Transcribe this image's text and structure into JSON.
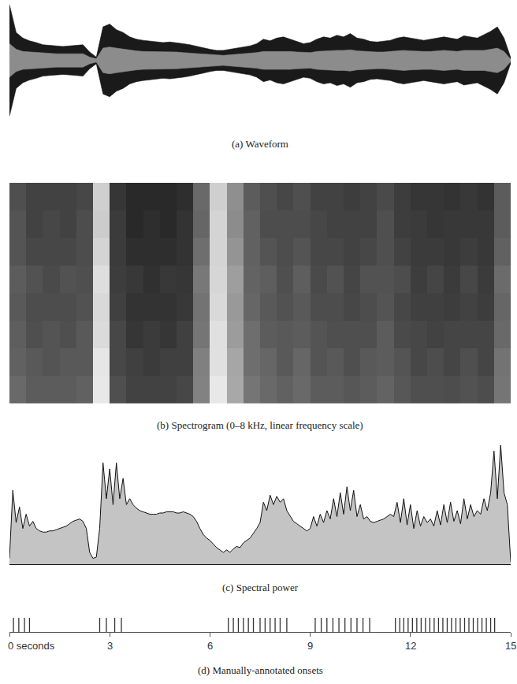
{
  "chart_data": [
    {
      "type": "waveform",
      "title": "(a) Waveform",
      "x": [
        0,
        0.2,
        0.4,
        0.6,
        0.8,
        1.0,
        1.2,
        1.4,
        1.6,
        1.8,
        2.0,
        2.2,
        2.4,
        2.6,
        2.8,
        3.0,
        3.2,
        3.4,
        3.6,
        3.8,
        4.0,
        4.2,
        4.4,
        4.6,
        4.8,
        5.0,
        5.2,
        5.4,
        5.6,
        5.8,
        6.0,
        6.2,
        6.4,
        6.6,
        6.8,
        7.0,
        7.2,
        7.4,
        7.6,
        7.8,
        8.0,
        8.2,
        8.4,
        8.6,
        8.8,
        9.0,
        9.2,
        9.4,
        9.6,
        9.8,
        10.0,
        10.2,
        10.4,
        10.6,
        10.8,
        11.0,
        11.2,
        11.4,
        11.6,
        11.8,
        12.0,
        12.2,
        12.4,
        12.6,
        12.8,
        13.0,
        13.2,
        13.4,
        13.6,
        13.8,
        14.0,
        14.2,
        14.4,
        14.6,
        14.8,
        15.0
      ],
      "series": [
        {
          "color": "#1a1a1a",
          "values": [
            1.0,
            0.5,
            0.4,
            0.35,
            0.32,
            0.28,
            0.27,
            0.26,
            0.25,
            0.26,
            0.27,
            0.28,
            0.15,
            0.06,
            0.6,
            0.65,
            0.55,
            0.5,
            0.42,
            0.38,
            0.36,
            0.35,
            0.33,
            0.32,
            0.33,
            0.32,
            0.3,
            0.28,
            0.25,
            0.22,
            0.2,
            0.18,
            0.18,
            0.2,
            0.22,
            0.24,
            0.26,
            0.3,
            0.38,
            0.35,
            0.4,
            0.42,
            0.38,
            0.34,
            0.3,
            0.32,
            0.38,
            0.42,
            0.4,
            0.45,
            0.42,
            0.48,
            0.4,
            0.38,
            0.34,
            0.33,
            0.34,
            0.36,
            0.4,
            0.42,
            0.4,
            0.38,
            0.36,
            0.38,
            0.4,
            0.42,
            0.4,
            0.38,
            0.44,
            0.42,
            0.4,
            0.46,
            0.52,
            0.6,
            0.4,
            0.05
          ]
        },
        {
          "color": "#8c8c8c",
          "values": [
            0.3,
            0.2,
            0.16,
            0.15,
            0.14,
            0.13,
            0.12,
            0.12,
            0.12,
            0.12,
            0.12,
            0.12,
            0.06,
            0.03,
            0.22,
            0.24,
            0.22,
            0.2,
            0.18,
            0.17,
            0.16,
            0.16,
            0.15,
            0.15,
            0.15,
            0.15,
            0.14,
            0.13,
            0.12,
            0.11,
            0.1,
            0.09,
            0.09,
            0.1,
            0.11,
            0.12,
            0.12,
            0.14,
            0.16,
            0.16,
            0.17,
            0.17,
            0.16,
            0.15,
            0.14,
            0.14,
            0.16,
            0.17,
            0.17,
            0.18,
            0.18,
            0.19,
            0.17,
            0.16,
            0.15,
            0.15,
            0.15,
            0.16,
            0.17,
            0.18,
            0.17,
            0.16,
            0.16,
            0.16,
            0.17,
            0.18,
            0.17,
            0.16,
            0.18,
            0.18,
            0.17,
            0.18,
            0.2,
            0.22,
            0.16,
            0.02
          ]
        }
      ],
      "xlim": [
        0,
        15
      ],
      "ylim": [
        -1,
        1
      ],
      "tick_labels": false
    },
    {
      "type": "heatmap",
      "title": "(b) Spectrogram (0–8 kHz, linear frequency scale)",
      "x": [
        0,
        0.5,
        1.0,
        1.5,
        2.0,
        2.5,
        3.0,
        3.5,
        4.0,
        4.5,
        5.0,
        5.5,
        6.0,
        6.5,
        7.0,
        7.5,
        8.0,
        8.5,
        9.0,
        9.5,
        10.0,
        10.5,
        11.0,
        11.5,
        12.0,
        12.5,
        13.0,
        13.5,
        14.0,
        14.5,
        15.0
      ],
      "y": [
        0,
        1,
        2,
        3,
        4,
        5,
        6,
        7,
        8
      ],
      "values": [
        [
          0.41,
          0.36,
          0.36,
          0.36,
          0.38,
          0.91,
          0.31,
          0.26,
          0.26,
          0.26,
          0.28,
          0.51,
          0.91,
          0.66,
          0.46,
          0.41,
          0.38,
          0.41,
          0.36,
          0.36,
          0.34,
          0.36,
          0.39,
          0.34,
          0.31,
          0.31,
          0.3,
          0.32,
          0.3,
          0.46
        ],
        [
          0.38,
          0.35,
          0.33,
          0.35,
          0.35,
          0.9,
          0.28,
          0.25,
          0.23,
          0.25,
          0.25,
          0.5,
          0.88,
          0.65,
          0.43,
          0.4,
          0.35,
          0.4,
          0.33,
          0.35,
          0.31,
          0.35,
          0.36,
          0.33,
          0.28,
          0.3,
          0.27,
          0.31,
          0.27,
          0.45
        ],
        [
          0.37,
          0.31,
          0.33,
          0.31,
          0.35,
          0.86,
          0.28,
          0.21,
          0.23,
          0.21,
          0.25,
          0.46,
          0.88,
          0.61,
          0.43,
          0.36,
          0.35,
          0.36,
          0.33,
          0.31,
          0.31,
          0.31,
          0.36,
          0.29,
          0.28,
          0.26,
          0.27,
          0.27,
          0.27,
          0.41
        ],
        [
          0.35,
          0.3,
          0.3,
          0.3,
          0.32,
          0.85,
          0.25,
          0.2,
          0.2,
          0.2,
          0.22,
          0.45,
          0.85,
          0.6,
          0.4,
          0.35,
          0.32,
          0.35,
          0.3,
          0.3,
          0.28,
          0.3,
          0.33,
          0.28,
          0.25,
          0.25,
          0.24,
          0.26,
          0.24,
          0.4
        ],
        [
          0.36,
          0.32,
          0.29,
          0.32,
          0.31,
          0.87,
          0.24,
          0.22,
          0.19,
          0.22,
          0.21,
          0.47,
          0.84,
          0.62,
          0.39,
          0.37,
          0.31,
          0.37,
          0.29,
          0.32,
          0.27,
          0.32,
          0.32,
          0.3,
          0.24,
          0.27,
          0.23,
          0.28,
          0.23,
          0.42
        ],
        [
          0.33,
          0.28,
          0.28,
          0.28,
          0.3,
          0.83,
          0.23,
          0.18,
          0.18,
          0.18,
          0.2,
          0.43,
          0.83,
          0.58,
          0.38,
          0.33,
          0.3,
          0.33,
          0.28,
          0.28,
          0.26,
          0.28,
          0.31,
          0.26,
          0.23,
          0.23,
          0.22,
          0.24,
          0.22,
          0.38
        ],
        [
          0.33,
          0.26,
          0.28,
          0.26,
          0.3,
          0.8,
          0.23,
          0.16,
          0.18,
          0.16,
          0.2,
          0.4,
          0.83,
          0.55,
          0.38,
          0.3,
          0.3,
          0.3,
          0.28,
          0.26,
          0.26,
          0.26,
          0.31,
          0.24,
          0.23,
          0.21,
          0.22,
          0.22,
          0.22,
          0.36
        ],
        [
          0.31,
          0.26,
          0.26,
          0.26,
          0.28,
          0.81,
          0.21,
          0.16,
          0.16,
          0.16,
          0.18,
          0.41,
          0.81,
          0.56,
          0.36,
          0.31,
          0.28,
          0.31,
          0.26,
          0.26,
          0.24,
          0.26,
          0.29,
          0.24,
          0.21,
          0.21,
          0.2,
          0.22,
          0.2,
          0.36
        ]
      ],
      "zlim": [
        0,
        1
      ],
      "xlim": [
        0,
        15
      ],
      "ylim": [
        0,
        8
      ],
      "tick_labels": false
    },
    {
      "type": "area",
      "title": "(c) Spectral power",
      "color": "#c4c4c4",
      "x": [
        0,
        0.1,
        0.2,
        0.3,
        0.4,
        0.5,
        0.6,
        0.7,
        0.8,
        0.9,
        1.0,
        1.1,
        1.2,
        1.3,
        1.4,
        1.5,
        1.6,
        1.7,
        1.8,
        1.9,
        2.0,
        2.1,
        2.2,
        2.3,
        2.4,
        2.5,
        2.6,
        2.7,
        2.8,
        2.9,
        3.0,
        3.1,
        3.2,
        3.3,
        3.4,
        3.5,
        3.6,
        3.7,
        3.8,
        3.9,
        4.0,
        4.1,
        4.2,
        4.3,
        4.4,
        4.5,
        4.6,
        4.7,
        4.8,
        4.9,
        5.0,
        5.1,
        5.2,
        5.3,
        5.4,
        5.5,
        5.6,
        5.7,
        5.8,
        5.9,
        6.0,
        6.1,
        6.2,
        6.3,
        6.4,
        6.5,
        6.6,
        6.7,
        6.8,
        6.9,
        7.0,
        7.1,
        7.2,
        7.3,
        7.4,
        7.5,
        7.6,
        7.7,
        7.8,
        7.9,
        8.0,
        8.1,
        8.2,
        8.3,
        8.4,
        8.5,
        8.6,
        8.7,
        8.8,
        8.9,
        9.0,
        9.1,
        9.2,
        9.3,
        9.4,
        9.5,
        9.6,
        9.7,
        9.8,
        9.9,
        10.0,
        10.1,
        10.2,
        10.3,
        10.4,
        10.5,
        10.6,
        10.7,
        10.8,
        10.9,
        11.0,
        11.1,
        11.2,
        11.3,
        11.4,
        11.5,
        11.6,
        11.7,
        11.8,
        11.9,
        12.0,
        12.1,
        12.2,
        12.3,
        12.4,
        12.5,
        12.6,
        12.7,
        12.8,
        12.9,
        13.0,
        13.1,
        13.2,
        13.3,
        13.4,
        13.5,
        13.6,
        13.7,
        13.8,
        13.9,
        14.0,
        14.1,
        14.2,
        14.3,
        14.4,
        14.5,
        14.6,
        14.7,
        14.8,
        14.9,
        15.0
      ],
      "values": [
        0.05,
        0.62,
        0.35,
        0.48,
        0.3,
        0.42,
        0.32,
        0.36,
        0.3,
        0.28,
        0.27,
        0.27,
        0.28,
        0.28,
        0.29,
        0.3,
        0.31,
        0.32,
        0.34,
        0.36,
        0.37,
        0.38,
        0.36,
        0.3,
        0.1,
        0.05,
        0.06,
        0.3,
        0.85,
        0.55,
        0.8,
        0.5,
        0.85,
        0.55,
        0.72,
        0.5,
        0.55,
        0.5,
        0.47,
        0.45,
        0.44,
        0.43,
        0.42,
        0.42,
        0.42,
        0.43,
        0.43,
        0.44,
        0.44,
        0.44,
        0.43,
        0.43,
        0.44,
        0.43,
        0.42,
        0.4,
        0.36,
        0.3,
        0.25,
        0.22,
        0.2,
        0.17,
        0.14,
        0.12,
        0.1,
        0.12,
        0.1,
        0.13,
        0.15,
        0.14,
        0.18,
        0.2,
        0.22,
        0.26,
        0.3,
        0.35,
        0.52,
        0.45,
        0.58,
        0.5,
        0.57,
        0.52,
        0.55,
        0.45,
        0.4,
        0.36,
        0.34,
        0.32,
        0.3,
        0.28,
        0.3,
        0.4,
        0.32,
        0.42,
        0.35,
        0.45,
        0.38,
        0.55,
        0.4,
        0.6,
        0.42,
        0.65,
        0.45,
        0.62,
        0.4,
        0.5,
        0.38,
        0.4,
        0.36,
        0.35,
        0.36,
        0.37,
        0.38,
        0.4,
        0.42,
        0.4,
        0.52,
        0.35,
        0.55,
        0.33,
        0.5,
        0.3,
        0.45,
        0.32,
        0.4,
        0.35,
        0.38,
        0.32,
        0.45,
        0.33,
        0.5,
        0.35,
        0.52,
        0.36,
        0.45,
        0.34,
        0.55,
        0.38,
        0.5,
        0.4,
        0.45,
        0.42,
        0.55,
        0.45,
        0.6,
        0.95,
        0.55,
        1.0,
        0.6,
        0.5,
        0.02
      ],
      "xlim": [
        0,
        15
      ],
      "ylim": [
        0,
        1
      ],
      "tick_labels": false
    },
    {
      "type": "scatter",
      "title": "(d) Manually-annotated onsets",
      "marker": "line-ns",
      "color": "#333333",
      "x": [
        0.12,
        0.28,
        0.45,
        0.6,
        2.7,
        2.9,
        3.15,
        3.35,
        6.55,
        6.7,
        6.85,
        7.0,
        7.15,
        7.3,
        7.5,
        7.65,
        7.8,
        7.95,
        8.1,
        8.3,
        9.15,
        9.33,
        9.5,
        9.68,
        9.86,
        10.04,
        10.22,
        10.4,
        10.58,
        10.78,
        11.55,
        11.68,
        11.8,
        11.93,
        12.06,
        12.19,
        12.32,
        12.45,
        12.58,
        12.71,
        12.84,
        12.97,
        13.1,
        13.23,
        13.36,
        13.49,
        13.62,
        13.75,
        13.88,
        14.01,
        14.14,
        14.27,
        14.4,
        14.52
      ],
      "xlim": [
        0,
        15
      ],
      "xticks": [
        {
          "value": 0,
          "label": "0 seconds"
        },
        3,
        6,
        9,
        12,
        15
      ],
      "tick_labels": "x"
    }
  ]
}
